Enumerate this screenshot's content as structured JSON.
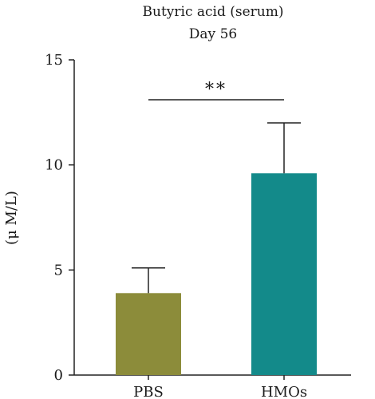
{
  "chart_data": {
    "type": "bar",
    "title": "Butyric acid (serum)",
    "subtitle": "Day 56",
    "xlabel": "",
    "ylabel": "(μ M/L)",
    "ylim": [
      0,
      15
    ],
    "yticks": [
      0,
      5,
      10,
      15
    ],
    "categories": [
      "PBS",
      "HMOs"
    ],
    "values": [
      3.9,
      9.6
    ],
    "error_upper": [
      5.1,
      12.0
    ],
    "colors": [
      "#8c8c3a",
      "#138a8a"
    ],
    "significance": {
      "label": "**",
      "between": [
        "PBS",
        "HMOs"
      ],
      "y": 13.1
    },
    "grid": false,
    "legend": "none"
  }
}
